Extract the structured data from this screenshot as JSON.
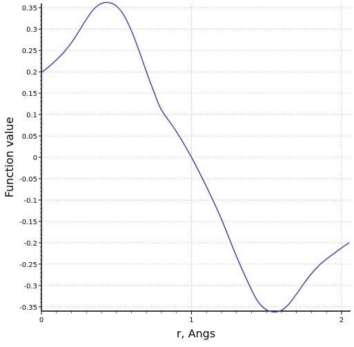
{
  "chart_data": {
    "type": "line",
    "xlabel": "r, Angs",
    "ylabel": "Function value",
    "xlim": [
      0,
      2.06
    ],
    "ylim": [
      -0.36,
      0.36
    ],
    "x_ticks": [
      {
        "value": 0,
        "label": "0"
      },
      {
        "value": 1,
        "label": "1"
      },
      {
        "value": 2,
        "label": "2"
      }
    ],
    "y_ticks": [
      {
        "value": 0.35,
        "label": "0.35"
      },
      {
        "value": 0.3,
        "label": "0.3"
      },
      {
        "value": 0.25,
        "label": "0.25"
      },
      {
        "value": 0.2,
        "label": "0.2"
      },
      {
        "value": 0.15,
        "label": "0.15"
      },
      {
        "value": 0.1,
        "label": "0.1"
      },
      {
        "value": 0.05,
        "label": "0.05"
      },
      {
        "value": 0,
        "label": "0"
      },
      {
        "value": -0.05,
        "label": "-0.05"
      },
      {
        "value": -0.1,
        "label": "-0.1"
      },
      {
        "value": -0.15,
        "label": "-0.15"
      },
      {
        "value": -0.2,
        "label": "-0.2"
      },
      {
        "value": -0.25,
        "label": "-0.25"
      },
      {
        "value": -0.3,
        "label": "-0.3"
      },
      {
        "value": -0.35,
        "label": "-0.35"
      }
    ],
    "grid": true,
    "series": [
      {
        "color": "#3333dd",
        "x": [
          0,
          0.05,
          0.1,
          0.15,
          0.2,
          0.25,
          0.3,
          0.35,
          0.4,
          0.45,
          0.5,
          0.55,
          0.6,
          0.65,
          0.7,
          0.75,
          0.8,
          0.9,
          1.0,
          1.1,
          1.2,
          1.3,
          1.4,
          1.45,
          1.5,
          1.55,
          1.6,
          1.65,
          1.7,
          1.75,
          1.8,
          1.85,
          1.9,
          1.95,
          2.0,
          2.05
        ],
        "y": [
          0.198,
          0.212,
          0.228,
          0.246,
          0.268,
          0.295,
          0.323,
          0.347,
          0.36,
          0.362,
          0.354,
          0.332,
          0.296,
          0.25,
          0.2,
          0.153,
          0.111,
          0.06,
          0.0,
          -0.069,
          -0.145,
          -0.232,
          -0.31,
          -0.341,
          -0.357,
          -0.362,
          -0.358,
          -0.343,
          -0.32,
          -0.295,
          -0.272,
          -0.253,
          -0.238,
          -0.225,
          -0.212,
          -0.2
        ]
      }
    ]
  }
}
